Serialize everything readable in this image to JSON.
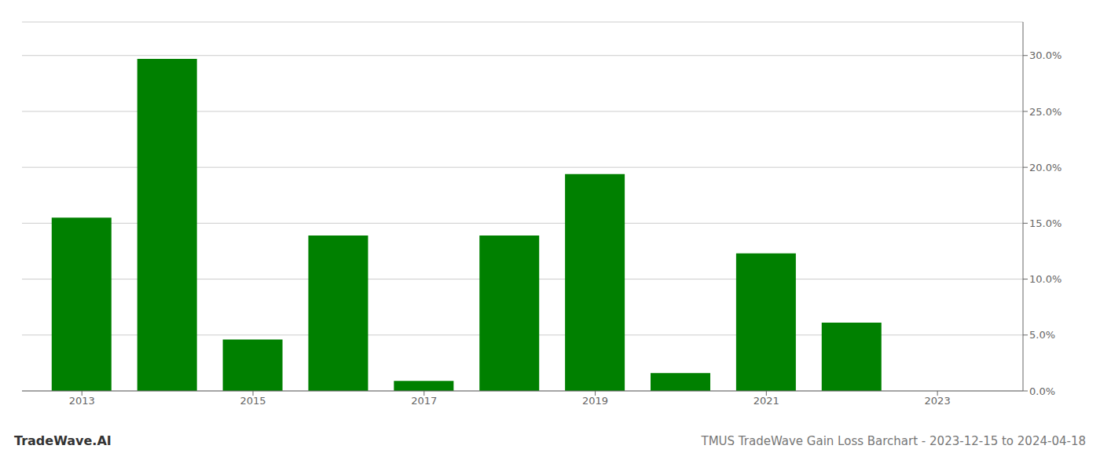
{
  "chart_data": {
    "type": "bar",
    "title": "TMUS TradeWave Gain Loss Barchart - 2023-12-15 to 2024-04-18",
    "annotations": [
      "TradeWave.AI"
    ],
    "x": [
      2013,
      2014,
      2015,
      2016,
      2017,
      2018,
      2019,
      2020,
      2021,
      2022,
      2023
    ],
    "values": [
      0.155,
      0.297,
      0.046,
      0.139,
      0.009,
      0.139,
      0.194,
      0.016,
      0.123,
      0.061,
      0.0
    ],
    "color": "#008000",
    "xlim": [
      2012.3,
      2024.0
    ],
    "xticks": [
      2013,
      2015,
      2017,
      2019,
      2021,
      2023
    ],
    "ylim": [
      0,
      0.33
    ],
    "yticks": [
      {
        "value": 0.0,
        "label": "0.0%"
      },
      {
        "value": 0.05,
        "label": "5.0%"
      },
      {
        "value": 0.1,
        "label": "10.0%"
      },
      {
        "value": 0.15,
        "label": "15.0%"
      },
      {
        "value": 0.2,
        "label": "20.0%"
      },
      {
        "value": 0.25,
        "label": "25.0%"
      },
      {
        "value": 0.3,
        "label": "30.0%"
      }
    ],
    "grid": "y"
  }
}
